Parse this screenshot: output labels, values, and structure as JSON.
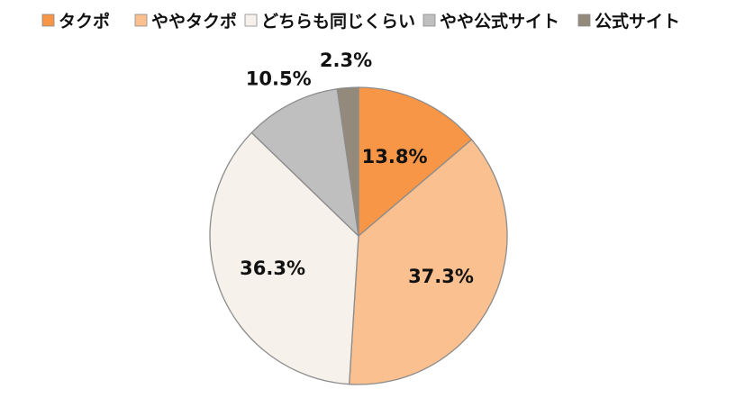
{
  "chart_data": {
    "type": "pie",
    "categories": [
      "タクポ",
      "ややタクポ",
      "どちらも同じくらい",
      "やや公式サイト",
      "公式サイト"
    ],
    "values": [
      13.8,
      37.3,
      36.3,
      10.5,
      2.3
    ],
    "labels": [
      "13.8%",
      "37.3%",
      "36.3%",
      "10.5%",
      "2.3%"
    ],
    "colors": [
      "#f79646",
      "#fac090",
      "#f6f1ea",
      "#bfbfbf",
      "#948a7c"
    ],
    "legend_position": "top",
    "start": "12 o'clock",
    "direction": "clockwise"
  }
}
